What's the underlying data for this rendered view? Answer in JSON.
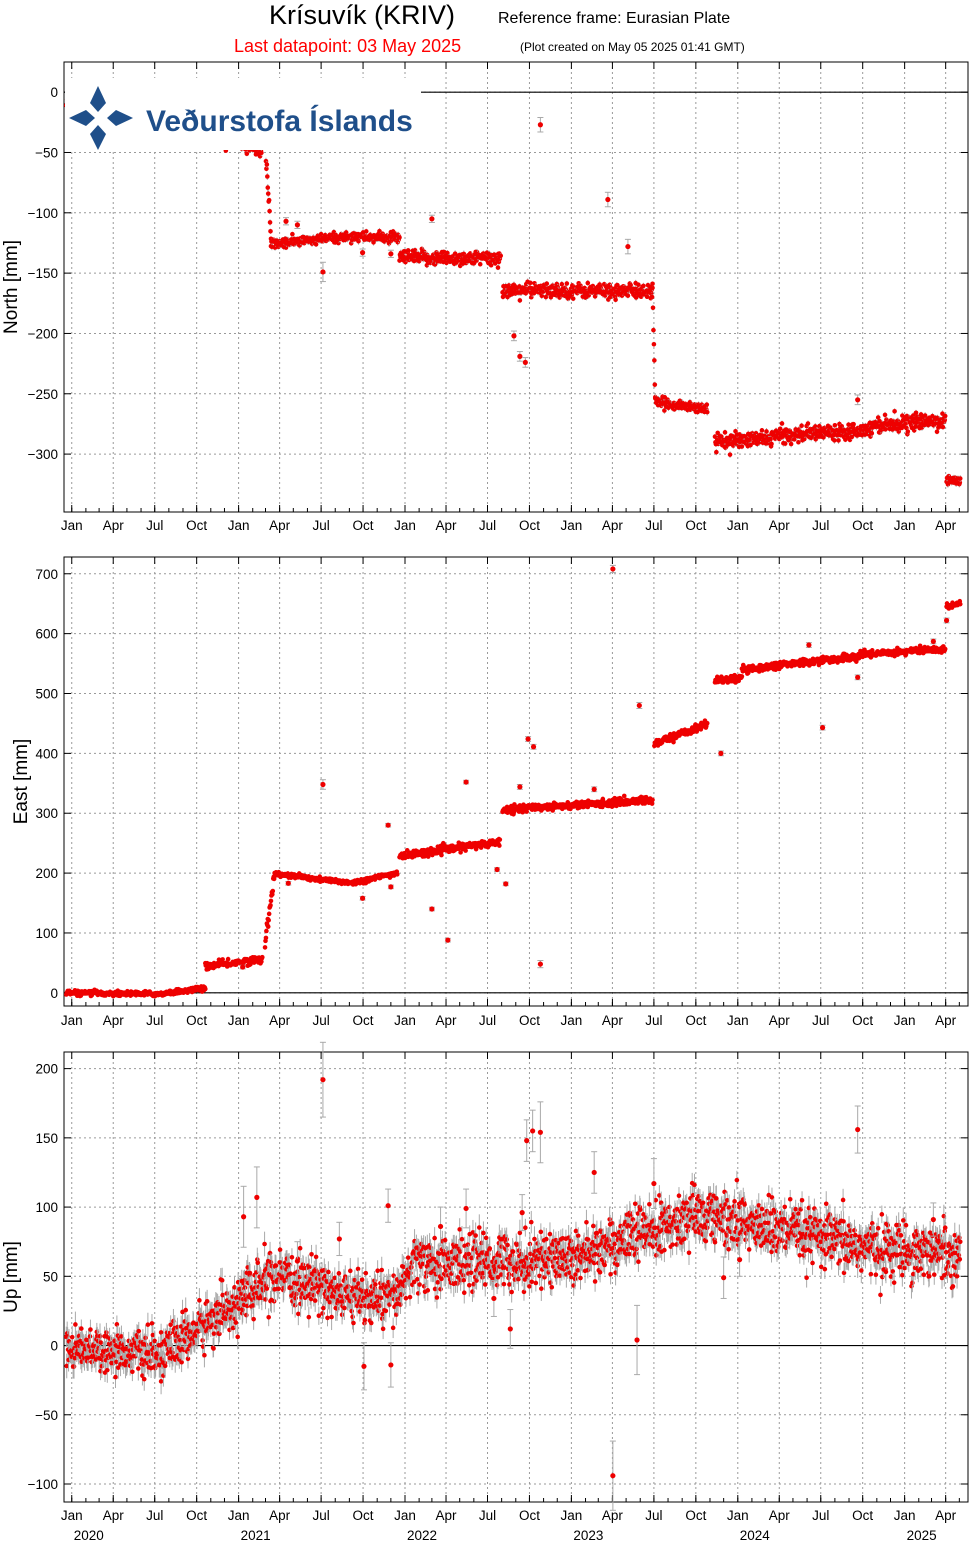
{
  "header": {
    "station": "Krísuvík (KRIV)",
    "reference_frame": "Reference frame: Eurasian Plate",
    "last_datapoint": "Last datapoint: 03 May 2025",
    "created": "(Plot created on May 05 2025 01:41 GMT)"
  },
  "logo": {
    "text": "Veðurstofa Íslands",
    "icon": "vedurstofa-snowflake-logo"
  },
  "colors": {
    "points": "#ee0000",
    "errorbars": "#a9a9a9",
    "grid": "#9a9a9a",
    "logo": "#1f4f8a"
  },
  "x_axis": {
    "month_labels": [
      "Jan",
      "Apr",
      "Jul",
      "Oct",
      "Jan",
      "Apr",
      "Jul",
      "Oct",
      "Jan",
      "Apr",
      "Jul",
      "Oct",
      "Jan",
      "Apr",
      "Jul",
      "Oct",
      "Jan",
      "Apr",
      "Jul",
      "Oct",
      "Jan",
      "Apr"
    ],
    "year_labels": [
      "2020",
      "2021",
      "2022",
      "2023",
      "2024",
      "2025"
    ]
  },
  "chart_data": [
    {
      "type": "scatter",
      "ylabel": "North [mm]",
      "xlim": [
        "2019-12-15",
        "2025-05-20"
      ],
      "ylim": [
        -348,
        25
      ],
      "yticks": [
        0,
        -50,
        -100,
        -150,
        -200,
        -250,
        -300
      ],
      "grid": true,
      "segments": [
        {
          "from": "2019-12-20",
          "to": "2020-12-25",
          "y0": -10,
          "y1": -40,
          "noise": 3
        },
        {
          "from": "2020-12-25",
          "to": "2021-02-20",
          "y0": -40,
          "y1": -50,
          "noise": 2
        },
        {
          "from": "2021-03-01",
          "to": "2021-03-13",
          "y0": -50,
          "y1": -118,
          "noise": 4
        },
        {
          "from": "2021-03-13",
          "to": "2021-06-01",
          "y0": -126,
          "y1": -123,
          "noise": 2
        },
        {
          "from": "2021-06-01",
          "to": "2021-09-20",
          "y0": -123,
          "y1": -119,
          "noise": 2
        },
        {
          "from": "2021-09-20",
          "to": "2021-12-20",
          "y0": -120,
          "y1": -121,
          "noise": 2
        },
        {
          "from": "2021-12-20",
          "to": "2022-07-30",
          "y0": -137,
          "y1": -138,
          "noise": 3
        },
        {
          "from": "2022-08-03",
          "to": "2023-06-28",
          "y0": -164,
          "y1": -165,
          "noise": 3
        },
        {
          "from": "2023-06-28",
          "to": "2023-07-04",
          "y0": -165,
          "y1": -255,
          "noise": 3
        },
        {
          "from": "2023-07-04",
          "to": "2023-10-26",
          "y0": -257,
          "y1": -262,
          "noise": 2
        },
        {
          "from": "2023-11-12",
          "to": "2024-03-15",
          "y0": -290,
          "y1": -287,
          "noise": 3
        },
        {
          "from": "2024-03-15",
          "to": "2024-10-20",
          "y0": -285,
          "y1": -279,
          "noise": 3
        },
        {
          "from": "2024-10-20",
          "to": "2025-03-31",
          "y0": -276,
          "y1": -272,
          "noise": 3
        },
        {
          "from": "2025-04-03",
          "to": "2025-05-03",
          "y0": -322,
          "y1": -322,
          "noise": 2
        }
      ],
      "outliers": [
        {
          "date": "2021-04-15",
          "y": -107,
          "err": 3
        },
        {
          "date": "2021-05-10",
          "y": -110,
          "err": 3
        },
        {
          "date": "2021-07-05",
          "y": -149,
          "err": 8
        },
        {
          "date": "2021-09-30",
          "y": -133,
          "err": 3
        },
        {
          "date": "2021-12-01",
          "y": -134,
          "err": 3
        },
        {
          "date": "2022-03-01",
          "y": -105,
          "err": 3
        },
        {
          "date": "2022-08-28",
          "y": -202,
          "err": 4
        },
        {
          "date": "2022-09-10",
          "y": -219,
          "err": 4
        },
        {
          "date": "2022-09-22",
          "y": -224,
          "err": 4
        },
        {
          "date": "2022-10-25",
          "y": -27,
          "err": 6
        },
        {
          "date": "2023-03-22",
          "y": -89,
          "err": 6
        },
        {
          "date": "2023-05-05",
          "y": -128,
          "err": 6
        },
        {
          "date": "2024-09-20",
          "y": -255,
          "err": 4
        }
      ]
    },
    {
      "type": "scatter",
      "ylabel": "East [mm]",
      "xlim": [
        "2019-12-15",
        "2025-05-20"
      ],
      "ylim": [
        -22,
        728
      ],
      "yticks": [
        0,
        100,
        200,
        300,
        400,
        500,
        600,
        700
      ],
      "grid": true,
      "segments": [
        {
          "from": "2019-12-20",
          "to": "2020-07-10",
          "y0": 0,
          "y1": -2,
          "noise": 2
        },
        {
          "from": "2020-07-10",
          "to": "2020-10-20",
          "y0": -2,
          "y1": 8,
          "noise": 2
        },
        {
          "from": "2020-10-20",
          "to": "2021-02-22",
          "y0": 44,
          "y1": 56,
          "noise": 3
        },
        {
          "from": "2021-02-28",
          "to": "2021-03-20",
          "y0": 85,
          "y1": 195,
          "noise": 6
        },
        {
          "from": "2021-03-20",
          "to": "2021-06-01",
          "y0": 198,
          "y1": 193,
          "noise": 2
        },
        {
          "from": "2021-06-01",
          "to": "2021-09-10",
          "y0": 191,
          "y1": 184,
          "noise": 2
        },
        {
          "from": "2021-09-10",
          "to": "2021-12-15",
          "y0": 184,
          "y1": 200,
          "noise": 2
        },
        {
          "from": "2021-12-20",
          "to": "2022-07-28",
          "y0": 228,
          "y1": 252,
          "noise": 3
        },
        {
          "from": "2022-08-03",
          "to": "2023-06-28",
          "y0": 306,
          "y1": 322,
          "noise": 3
        },
        {
          "from": "2023-07-02",
          "to": "2023-10-26",
          "y0": 416,
          "y1": 449,
          "noise": 3
        },
        {
          "from": "2023-11-12",
          "to": "2024-01-10",
          "y0": 522,
          "y1": 525,
          "noise": 3
        },
        {
          "from": "2024-01-10",
          "to": "2024-10-01",
          "y0": 540,
          "y1": 563,
          "noise": 3
        },
        {
          "from": "2024-10-01",
          "to": "2025-03-31",
          "y0": 566,
          "y1": 574,
          "noise": 3
        },
        {
          "from": "2025-04-03",
          "to": "2025-05-03",
          "y0": 645,
          "y1": 651,
          "noise": 2
        }
      ],
      "outliers": [
        {
          "date": "2021-01-10",
          "y": 43,
          "err": 3
        },
        {
          "date": "2021-04-20",
          "y": 183,
          "err": 3
        },
        {
          "date": "2021-07-05",
          "y": 348,
          "err": 8
        },
        {
          "date": "2021-09-30",
          "y": 158,
          "err": 3
        },
        {
          "date": "2021-11-25",
          "y": 280,
          "err": 3
        },
        {
          "date": "2021-12-01",
          "y": 177,
          "err": 3
        },
        {
          "date": "2022-03-01",
          "y": 140,
          "err": 3
        },
        {
          "date": "2022-04-05",
          "y": 88,
          "err": 3
        },
        {
          "date": "2022-05-15",
          "y": 352,
          "err": 3
        },
        {
          "date": "2022-07-22",
          "y": 206,
          "err": 3
        },
        {
          "date": "2022-08-10",
          "y": 182,
          "err": 3
        },
        {
          "date": "2022-09-10",
          "y": 344,
          "err": 4
        },
        {
          "date": "2022-09-28",
          "y": 424,
          "err": 4
        },
        {
          "date": "2022-10-10",
          "y": 411,
          "err": 4
        },
        {
          "date": "2022-10-25",
          "y": 48,
          "err": 6
        },
        {
          "date": "2023-02-20",
          "y": 340,
          "err": 4
        },
        {
          "date": "2023-04-02",
          "y": 708,
          "err": 6
        },
        {
          "date": "2023-05-30",
          "y": 480,
          "err": 5
        },
        {
          "date": "2023-11-25",
          "y": 400,
          "err": 4
        },
        {
          "date": "2024-06-05",
          "y": 581,
          "err": 4
        },
        {
          "date": "2024-07-05",
          "y": 443,
          "err": 4
        },
        {
          "date": "2024-09-20",
          "y": 527,
          "err": 4
        },
        {
          "date": "2025-03-05",
          "y": 587,
          "err": 4
        },
        {
          "date": "2025-04-03",
          "y": 622,
          "err": 4
        }
      ]
    },
    {
      "type": "scatter",
      "ylabel": "Up [mm]",
      "xlim": [
        "2019-12-15",
        "2025-05-20"
      ],
      "ylim": [
        -113,
        212
      ],
      "yticks": [
        200,
        150,
        100,
        50,
        0,
        -50,
        -100
      ],
      "grid": true,
      "segments": [
        {
          "from": "2019-12-20",
          "to": "2020-07-15",
          "y0": 0,
          "y1": -7,
          "noise": 7
        },
        {
          "from": "2020-07-15",
          "to": "2021-02-25",
          "y0": -7,
          "y1": 45,
          "noise": 9
        },
        {
          "from": "2021-02-25",
          "to": "2021-07-20",
          "y0": 48,
          "y1": 43,
          "noise": 9
        },
        {
          "from": "2021-07-20",
          "to": "2021-12-10",
          "y0": 37,
          "y1": 33,
          "noise": 9
        },
        {
          "from": "2021-12-10",
          "to": "2022-01-25",
          "y0": 33,
          "y1": 62,
          "noise": 9
        },
        {
          "from": "2022-01-25",
          "to": "2023-01-01",
          "y0": 58,
          "y1": 64,
          "noise": 10
        },
        {
          "from": "2023-01-01",
          "to": "2023-11-01",
          "y0": 64,
          "y1": 96,
          "noise": 10
        },
        {
          "from": "2023-11-01",
          "to": "2024-10-15",
          "y0": 93,
          "y1": 70,
          "noise": 10
        },
        {
          "from": "2024-10-15",
          "to": "2025-05-03",
          "y0": 70,
          "y1": 68,
          "noise": 10
        }
      ],
      "outliers": [
        {
          "date": "2021-01-12",
          "y": 93,
          "err": 22
        },
        {
          "date": "2021-02-10",
          "y": 107,
          "err": 22
        },
        {
          "date": "2021-05-10",
          "y": 61,
          "err": 14
        },
        {
          "date": "2021-07-05",
          "y": 192,
          "err": 27
        },
        {
          "date": "2021-08-10",
          "y": 77,
          "err": 12
        },
        {
          "date": "2021-10-03",
          "y": -15,
          "err": 17
        },
        {
          "date": "2021-11-25",
          "y": 101,
          "err": 12
        },
        {
          "date": "2021-12-01",
          "y": -14,
          "err": 16
        },
        {
          "date": "2022-03-20",
          "y": 86,
          "err": 14
        },
        {
          "date": "2022-05-15",
          "y": 99,
          "err": 14
        },
        {
          "date": "2022-07-15",
          "y": 34,
          "err": 13
        },
        {
          "date": "2022-08-20",
          "y": 12,
          "err": 14
        },
        {
          "date": "2022-09-15",
          "y": 96,
          "err": 13
        },
        {
          "date": "2022-09-25",
          "y": 148,
          "err": 15
        },
        {
          "date": "2022-10-08",
          "y": 155,
          "err": 15
        },
        {
          "date": "2022-10-25",
          "y": 154,
          "err": 22
        },
        {
          "date": "2023-02-20",
          "y": 125,
          "err": 15
        },
        {
          "date": "2023-04-02",
          "y": -94,
          "err": 25
        },
        {
          "date": "2023-05-25",
          "y": 4,
          "err": 25
        },
        {
          "date": "2023-07-01",
          "y": 117,
          "err": 18
        },
        {
          "date": "2023-12-01",
          "y": 49,
          "err": 15
        },
        {
          "date": "2024-01-05",
          "y": 62,
          "err": 12
        },
        {
          "date": "2024-09-20",
          "y": 156,
          "err": 17
        },
        {
          "date": "2025-03-05",
          "y": 91,
          "err": 12
        }
      ]
    }
  ]
}
